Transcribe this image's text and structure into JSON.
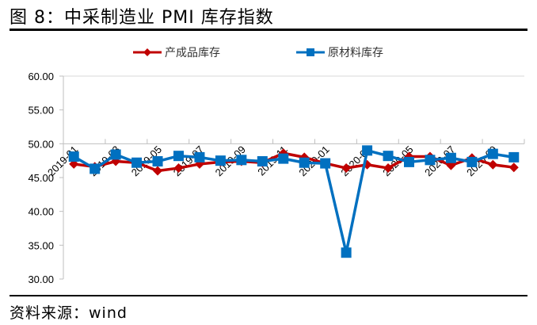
{
  "header": {
    "title": "图 8：中采制造业 PMI 库存指数"
  },
  "footer": {
    "source": "资料来源：wind"
  },
  "chart_data": {
    "type": "line",
    "title": "",
    "xlabel": "",
    "ylabel": "",
    "ylim": [
      30,
      60
    ],
    "yticks": [
      "60.00",
      "55.00",
      "50.00",
      "45.00",
      "40.00",
      "35.00",
      "30.00"
    ],
    "x_axis_crosses_at": 50,
    "legend_position": "top",
    "grid": false,
    "categories": [
      "2019-01",
      "2019-02",
      "2019-03",
      "2019-04",
      "2019-05",
      "2019-06",
      "2019-07",
      "2019-08",
      "2019-09",
      "2019-10",
      "2019-11",
      "2019-12",
      "2020-01",
      "2020-02",
      "2020-03",
      "2020-04",
      "2020-05",
      "2020-06",
      "2020-07",
      "2020-08",
      "2020-09",
      "2020-10"
    ],
    "xtick_labels": [
      "2019-01",
      "2019-03",
      "2019-05",
      "2019-07",
      "2019-09",
      "2019-11",
      "2020-01",
      "2020-03",
      "2020-05",
      "2020-07",
      "2020-09"
    ],
    "series": [
      {
        "name": "产成品库存",
        "color": "#C00000",
        "marker": "diamond",
        "values": [
          47.0,
          46.6,
          47.4,
          47.2,
          46.0,
          46.4,
          47.0,
          47.3,
          47.4,
          47.2,
          48.6,
          48.0,
          47.1,
          46.4,
          46.9,
          46.4,
          48.1,
          48.1,
          46.8,
          47.9,
          46.9,
          46.5
        ]
      },
      {
        "name": "原材料库存",
        "color": "#0070C0",
        "marker": "square",
        "values": [
          48.1,
          46.3,
          48.4,
          47.2,
          47.4,
          48.2,
          48.0,
          47.5,
          47.6,
          47.4,
          47.8,
          47.2,
          47.1,
          33.9,
          49.0,
          48.2,
          47.3,
          47.6,
          47.9,
          47.3,
          48.5,
          48.0
        ]
      }
    ]
  }
}
